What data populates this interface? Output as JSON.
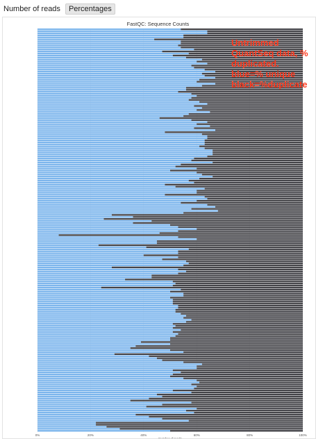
{
  "toolbar": {
    "buttons": [
      {
        "label": "Number of reads",
        "active": false
      },
      {
        "label": "Percentages",
        "active": true
      }
    ]
  },
  "annotation": "Untrimmed\nQuantSeq data, %\nduplicated.\nblue=% unique\nblack=%duplicate",
  "colors": {
    "unique": "#7cb5ec",
    "duplicate": "#434348",
    "annotation": "#ff3b1f"
  },
  "chart_data": {
    "type": "bar",
    "orientation": "horizontal",
    "stacked": true,
    "title": "FastQC: Sequence Counts",
    "xlabel": "Number of reads",
    "xlim": [
      0,
      100
    ],
    "xticks": [
      "0%",
      "20%",
      "40%",
      "60%",
      "80%",
      "100%"
    ],
    "series": [
      {
        "color": "#7cb5ec",
        "values": [
          54,
          64,
          64,
          55,
          55,
          44,
          54,
          54,
          53,
          54,
          59,
          47,
          57,
          51,
          56,
          62,
          60,
          64,
          58,
          59,
          63,
          67,
          62,
          63,
          67,
          61,
          60,
          67,
          62,
          56,
          56,
          53,
          58,
          60,
          58,
          57,
          61,
          64,
          59,
          62,
          60,
          65,
          57,
          55,
          46,
          58,
          64,
          60,
          65,
          59,
          67,
          48,
          62,
          64,
          64,
          63,
          63,
          63,
          61,
          63,
          66,
          66,
          66,
          64,
          59,
          58,
          66,
          54,
          52,
          60,
          50,
          60,
          62,
          66,
          61,
          57,
          59,
          48,
          52,
          63,
          60,
          60,
          48,
          63,
          64,
          60,
          54,
          64,
          67,
          58,
          68,
          55,
          28,
          36,
          25,
          43,
          36,
          50,
          53,
          60,
          53,
          46,
          8,
          53,
          60,
          45,
          45,
          23,
          41,
          57,
          53,
          53,
          40,
          53,
          47,
          56,
          57,
          55,
          28,
          53,
          56,
          53,
          43,
          43,
          33,
          51,
          52,
          51,
          24,
          54,
          50,
          55,
          55,
          50,
          51,
          51,
          51,
          53,
          53,
          52,
          52,
          54,
          56,
          55,
          58,
          56,
          51,
          52,
          51,
          54,
          51,
          53,
          52,
          50,
          50,
          39,
          50,
          37,
          35,
          50,
          55,
          29,
          42,
          45,
          47,
          55,
          62,
          60,
          60,
          51,
          54,
          51,
          50,
          55,
          60,
          61,
          58,
          60,
          59,
          51,
          58,
          45,
          47,
          42,
          35,
          58,
          47,
          41,
          60,
          56,
          59,
          37,
          42,
          47,
          57,
          22,
          22,
          26,
          31,
          50
        ]
      },
      {
        "color": "#434348",
        "values": [
          46,
          36,
          36,
          45,
          45,
          56,
          46,
          46,
          47,
          46,
          41,
          53,
          43,
          49,
          44,
          38,
          40,
          36,
          42,
          41,
          37,
          33,
          38,
          37,
          33,
          39,
          40,
          33,
          38,
          44,
          44,
          47,
          42,
          40,
          42,
          43,
          39,
          36,
          41,
          38,
          40,
          35,
          43,
          45,
          54,
          42,
          36,
          40,
          35,
          41,
          33,
          52,
          38,
          36,
          36,
          37,
          37,
          37,
          39,
          37,
          34,
          34,
          34,
          36,
          41,
          42,
          34,
          46,
          48,
          40,
          50,
          40,
          38,
          34,
          39,
          43,
          41,
          52,
          48,
          37,
          40,
          40,
          52,
          37,
          36,
          40,
          46,
          36,
          33,
          42,
          32,
          45,
          72,
          64,
          75,
          57,
          64,
          50,
          47,
          40,
          47,
          54,
          92,
          47,
          40,
          55,
          55,
          77,
          59,
          43,
          47,
          47,
          60,
          47,
          53,
          44,
          43,
          45,
          72,
          47,
          44,
          47,
          57,
          57,
          67,
          49,
          48,
          49,
          76,
          46,
          50,
          45,
          45,
          50,
          49,
          49,
          49,
          47,
          47,
          48,
          48,
          46,
          44,
          45,
          42,
          44,
          49,
          48,
          49,
          46,
          49,
          47,
          48,
          50,
          50,
          61,
          50,
          63,
          65,
          50,
          45,
          71,
          58,
          55,
          53,
          45,
          38,
          40,
          40,
          49,
          46,
          49,
          50,
          45,
          40,
          39,
          42,
          40,
          41,
          49,
          42,
          55,
          53,
          58,
          65,
          42,
          53,
          59,
          40,
          44,
          41,
          63,
          58,
          53,
          43,
          78,
          78,
          74,
          69,
          50
        ]
      }
    ]
  }
}
